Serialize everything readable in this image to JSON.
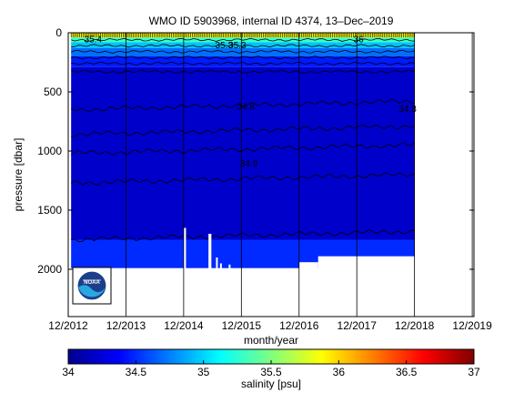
{
  "chart_data": {
    "type": "heatmap",
    "title": "WMO ID 5903968, internal ID 4374, 13–Dec–2019",
    "xlabel": "month/year",
    "ylabel": "pressure [dbar]",
    "xlim": [
      2012.92,
      2019.95
    ],
    "ylim": [
      0,
      2400
    ],
    "y_reversed": true,
    "x_ticks": [
      "12/2012",
      "12/2013",
      "12/2014",
      "12/2015",
      "12/2016",
      "12/2017",
      "12/2018",
      "12/2019"
    ],
    "x_tick_values": [
      2012.92,
      2013.92,
      2014.92,
      2015.92,
      2016.92,
      2017.92,
      2018.92,
      2019.92
    ],
    "y_ticks": [
      0,
      500,
      1000,
      1500,
      2000
    ],
    "data_time_range": [
      2012.97,
      2018.92
    ],
    "profile_bottom_dbar": 1990,
    "gaps": [
      {
        "x": [
          2014.92,
          2014.96
        ],
        "ymax": 1650
      },
      {
        "x": [
          2015.35,
          2015.4
        ],
        "ymax": 1700
      },
      {
        "x": [
          2015.48,
          2015.5
        ],
        "ymax": 1900
      },
      {
        "x": [
          2015.55,
          2015.58
        ],
        "ymax": 1950
      },
      {
        "x": [
          2015.7,
          2015.72
        ],
        "ymax": 1960
      }
    ],
    "shallow_bottom_segments": [
      {
        "x": [
          2016.92,
          2017.25
        ],
        "ymax": 1940
      },
      {
        "x": [
          2017.25,
          2018.92
        ],
        "ymax": 1890
      }
    ],
    "salinity_layers": [
      {
        "pmin": 0,
        "pmax": 40,
        "salinity": 35.9
      },
      {
        "pmin": 40,
        "pmax": 80,
        "salinity": 35.3
      },
      {
        "pmin": 80,
        "pmax": 130,
        "salinity": 34.95
      },
      {
        "pmin": 130,
        "pmax": 200,
        "salinity": 34.7
      },
      {
        "pmin": 200,
        "pmax": 290,
        "salinity": 34.45
      },
      {
        "pmin": 290,
        "pmax": 1750,
        "salinity": 34.2
      },
      {
        "pmin": 1750,
        "pmax": 2000,
        "salinity": 34.5
      }
    ],
    "contour_levels_dbar": [
      60,
      110,
      160,
      210,
      260,
      330,
      650,
      860,
      1020,
      1270,
      1750
    ],
    "contour_labels": [
      "35.3",
      "35.3",
      "35.4",
      "34.9",
      "36",
      "34.8",
      "34.8"
    ],
    "colorbar": {
      "label": "salinity [psu]",
      "min": 34,
      "max": 37,
      "ticks": [
        "34",
        "34.5",
        "35",
        "35.5",
        "36",
        "36.5",
        "37"
      ]
    },
    "grid": {
      "x": true,
      "y": false
    },
    "colormap": "jet"
  }
}
